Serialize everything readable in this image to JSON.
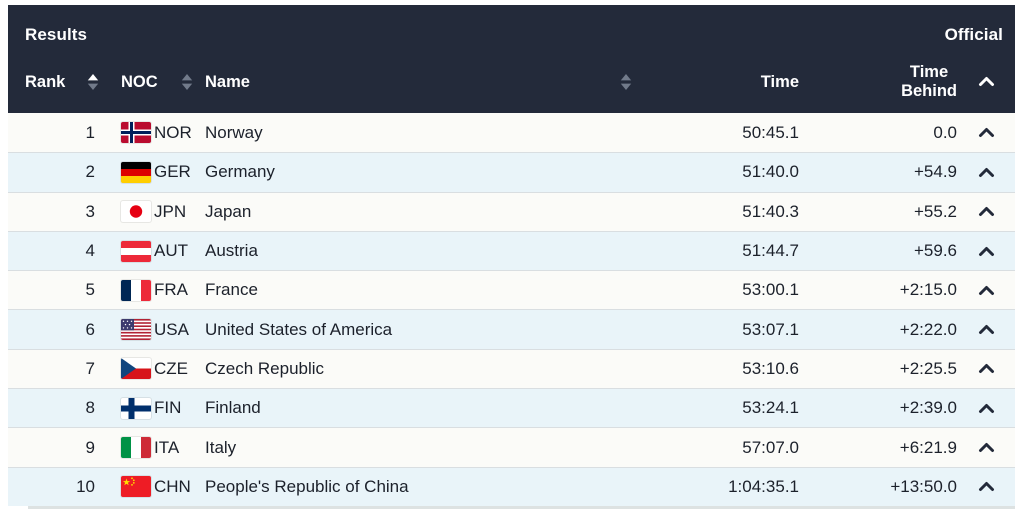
{
  "header": {
    "title": "Results",
    "status": "Official"
  },
  "columns": {
    "rank": "Rank",
    "noc": "NOC",
    "name": "Name",
    "time": "Time",
    "time_behind_line1": "Time",
    "time_behind_line2": "Behind"
  },
  "icons": {
    "rank_sort": "sort-icon-ascending-active",
    "noc_sort": "sort-icon",
    "name_sort": "sort-icon",
    "header_collapse": "chevron-up-icon",
    "row_collapse": "chevron-up-icon"
  },
  "colors": {
    "header_bg": "#232a3a",
    "header_text": "#ffffff",
    "row_bg": "#fbfbf8",
    "row_alt_bg": "#e9f4f9",
    "row_divider": "#d9dee1",
    "row_text": "#1c212b",
    "sort_inactive": "#717a8a",
    "sort_active": "#ffffff"
  },
  "rows": [
    {
      "rank": "1",
      "noc": "NOR",
      "name": "Norway",
      "time": "50:45.1",
      "behind": "0.0",
      "flag": "nor-flag-icon"
    },
    {
      "rank": "2",
      "noc": "GER",
      "name": "Germany",
      "time": "51:40.0",
      "behind": "+54.9",
      "flag": "ger-flag-icon"
    },
    {
      "rank": "3",
      "noc": "JPN",
      "name": "Japan",
      "time": "51:40.3",
      "behind": "+55.2",
      "flag": "jpn-flag-icon"
    },
    {
      "rank": "4",
      "noc": "AUT",
      "name": "Austria",
      "time": "51:44.7",
      "behind": "+59.6",
      "flag": "aut-flag-icon"
    },
    {
      "rank": "5",
      "noc": "FRA",
      "name": "France",
      "time": "53:00.1",
      "behind": "+2:15.0",
      "flag": "fra-flag-icon"
    },
    {
      "rank": "6",
      "noc": "USA",
      "name": "United States of America",
      "time": "53:07.1",
      "behind": "+2:22.0",
      "flag": "usa-flag-icon"
    },
    {
      "rank": "7",
      "noc": "CZE",
      "name": "Czech Republic",
      "time": "53:10.6",
      "behind": "+2:25.5",
      "flag": "cze-flag-icon"
    },
    {
      "rank": "8",
      "noc": "FIN",
      "name": "Finland",
      "time": "53:24.1",
      "behind": "+2:39.0",
      "flag": "fin-flag-icon"
    },
    {
      "rank": "9",
      "noc": "ITA",
      "name": "Italy",
      "time": "57:07.0",
      "behind": "+6:21.9",
      "flag": "ita-flag-icon"
    },
    {
      "rank": "10",
      "noc": "CHN",
      "name": "People's Republic of China",
      "time": "1:04:35.1",
      "behind": "+13:50.0",
      "flag": "chn-flag-icon"
    }
  ]
}
